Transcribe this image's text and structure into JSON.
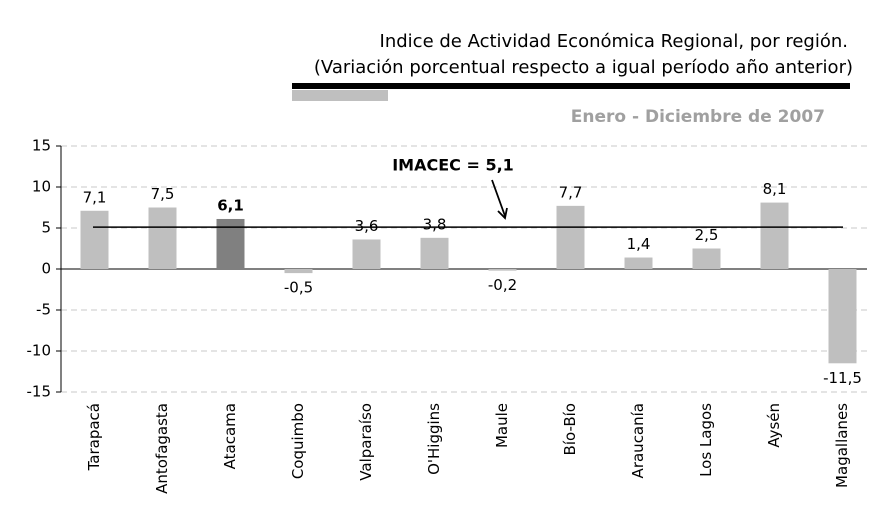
{
  "chart_data": {
    "type": "bar",
    "title": "Indice de Actividad Económica Regional, por región.",
    "subtitle": "(Variación porcentual respecto a igual período año anterior)",
    "period": "Enero - Diciembre de 2007",
    "categories": [
      "Tarapacá",
      "Antofagasta",
      "Atacama",
      "Coquimbo",
      "Valparaíso",
      "O'Higgins",
      "Maule",
      "Bío-Bío",
      "Araucanía",
      "Los Lagos",
      "Aysén",
      "Magallanes"
    ],
    "values": [
      7.1,
      7.5,
      6.1,
      -0.5,
      3.6,
      3.8,
      -0.2,
      7.7,
      1.4,
      2.5,
      8.1,
      -11.5
    ],
    "value_labels": [
      "7,1",
      "7,5",
      "6,1",
      "-0,5",
      "3,6",
      "3,8",
      "-0,2",
      "7,7",
      "1,4",
      "2,5",
      "8,1",
      "-11,5"
    ],
    "colors": [
      "#bfbfbf",
      "#bfbfbf",
      "#808080",
      "#bfbfbf",
      "#bfbfbf",
      "#bfbfbf",
      "#bfbfbf",
      "#bfbfbf",
      "#bfbfbf",
      "#bfbfbf",
      "#bfbfbf",
      "#bfbfbf"
    ],
    "label_bold": [
      false,
      false,
      true,
      false,
      false,
      false,
      false,
      false,
      false,
      false,
      false,
      false
    ],
    "reference_line": {
      "value": 5.1,
      "label": "IMACEC = 5,1"
    },
    "ylim": [
      -15,
      15
    ],
    "yticks": [
      15,
      10,
      5,
      0,
      -5,
      -10,
      -15
    ],
    "grid": true
  }
}
